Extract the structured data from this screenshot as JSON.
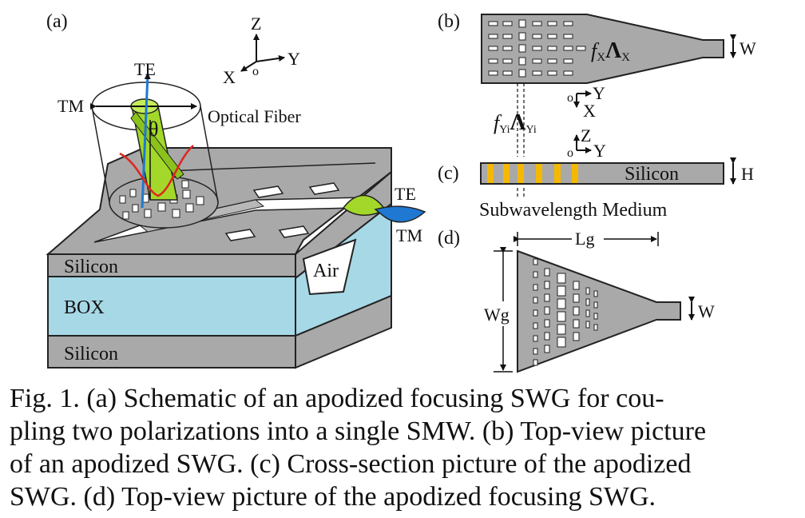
{
  "panels": {
    "a": {
      "label": "(a)",
      "axes": {
        "z": "Z",
        "x": "X",
        "y": "Y",
        "origin": "o"
      },
      "te": "TE",
      "tm": "TM",
      "theta": "θ",
      "fiber": "Optical Fiber",
      "te_out": "TE",
      "tm_out": "TM",
      "layers": {
        "top": "Silicon",
        "box": "BOX",
        "bottom": "Silicon"
      },
      "air": "Air"
    },
    "b": {
      "label": "(b)",
      "fx": "f",
      "fx_sub": "X",
      "lambda": "Λ",
      "lambda_sub": "X",
      "w": "W",
      "axes": {
        "origin": "o",
        "y": "Y",
        "x": "X"
      }
    },
    "between": {
      "f": "f",
      "f_sub": "Yi",
      "lambda": "Λ",
      "lambda_sub": "Yi"
    },
    "c": {
      "label": "(c)",
      "axes": {
        "origin": "o",
        "z": "Z",
        "y": "Y"
      },
      "silicon": "Silicon",
      "h": "H",
      "medium": "Subwavelength Medium"
    },
    "d": {
      "label": "(d)",
      "lg": "Lg",
      "wg": "Wg",
      "w": "W"
    }
  },
  "caption": {
    "line1": "Fig. 1.   (a) Schematic of an apodized focusing SWG for cou-",
    "line2": "pling two polarizations into a single SMW. (b) Top-view picture",
    "line3": "of an apodized SWG. (c) Cross-section picture of the apodized",
    "line4": "SWG. (d) Top-view picture of the apodized focusing SWG."
  },
  "colors": {
    "silicon_gray": "#a9a9a9",
    "box_blue": "#a7d8e6",
    "fiber_green": "#a3d82a",
    "beam_blue": "#1f78d1",
    "field_red": "#e0241e",
    "grating_yellow": "#f5b800"
  }
}
